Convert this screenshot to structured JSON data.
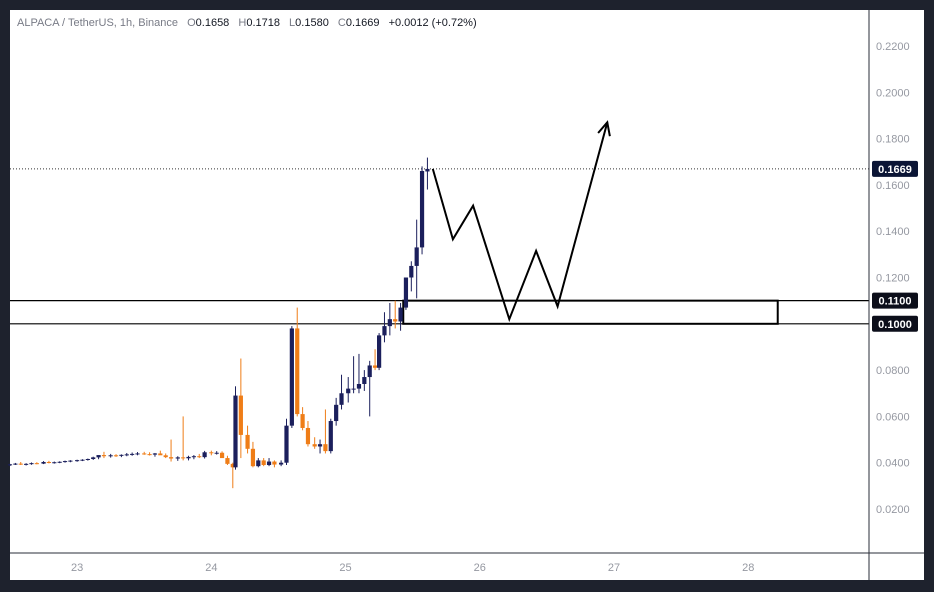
{
  "header": {
    "symbol": "ALPACA / TetherUS, 1h, Binance",
    "open_label": "O",
    "open": "0.1658",
    "high_label": "H",
    "high": "0.1718",
    "low_label": "L",
    "low": "0.1580",
    "close_label": "C",
    "close": "0.1669",
    "change": "+0.0012 (+0.72%)"
  },
  "colors": {
    "bull": "#1b1f5c",
    "bear": "#ef7d17",
    "axis_text": "#9598a1",
    "label_bg": "#0c0e1a"
  },
  "chart_data": {
    "type": "candlestick",
    "ylim": [
      0.0,
      0.23
    ],
    "y_ticks": [
      "0.0200",
      "0.0400",
      "0.0600",
      "0.0800",
      "0.1000",
      "0.1200",
      "0.1400",
      "0.1600",
      "0.1800",
      "0.2000",
      "0.2200"
    ],
    "x_ticks": [
      "23",
      "24",
      "25",
      "26",
      "27",
      "28"
    ],
    "x_tick_positions": [
      23,
      24,
      25,
      26,
      27,
      28
    ],
    "price_labels": [
      "0.1669",
      "0.1100",
      "0.1000"
    ],
    "current_price": 0.1669,
    "zone": {
      "top": 0.11,
      "bottom": 0.1,
      "x_start": 25.43,
      "x_end": 28.22
    },
    "projection": [
      [
        25.65,
        0.1669
      ],
      [
        25.8,
        0.1365
      ],
      [
        25.95,
        0.151
      ],
      [
        26.22,
        0.102
      ],
      [
        26.42,
        0.1315
      ],
      [
        26.58,
        0.1075
      ],
      [
        26.95,
        0.187
      ]
    ],
    "candles": [
      [
        22.5,
        0.0389,
        0.0395,
        0.0386,
        0.0393
      ],
      [
        22.54,
        0.0393,
        0.0399,
        0.039,
        0.0396
      ],
      [
        22.58,
        0.0396,
        0.0403,
        0.039,
        0.0392
      ],
      [
        22.62,
        0.0392,
        0.0398,
        0.0388,
        0.0395
      ],
      [
        22.66,
        0.0395,
        0.0401,
        0.0391,
        0.0398
      ],
      [
        22.7,
        0.0398,
        0.0402,
        0.0393,
        0.0396
      ],
      [
        22.75,
        0.0396,
        0.0407,
        0.0394,
        0.0403
      ],
      [
        22.79,
        0.0403,
        0.0408,
        0.0397,
        0.04
      ],
      [
        22.83,
        0.04,
        0.0405,
        0.0396,
        0.0402
      ],
      [
        22.87,
        0.0402,
        0.0406,
        0.0398,
        0.0404
      ],
      [
        22.91,
        0.0404,
        0.0409,
        0.04,
        0.0407
      ],
      [
        22.95,
        0.0407,
        0.0411,
        0.0402,
        0.0409
      ],
      [
        23.0,
        0.0409,
        0.0413,
        0.0404,
        0.0411
      ],
      [
        23.04,
        0.0411,
        0.0415,
        0.0407,
        0.0413
      ],
      [
        23.08,
        0.0413,
        0.0418,
        0.0409,
        0.0416
      ],
      [
        23.12,
        0.0416,
        0.0426,
        0.0412,
        0.0423
      ],
      [
        23.16,
        0.0423,
        0.043,
        0.0415,
        0.0433
      ],
      [
        23.2,
        0.0433,
        0.0447,
        0.042,
        0.0428
      ],
      [
        23.25,
        0.0428,
        0.0438,
        0.0422,
        0.0432
      ],
      [
        23.29,
        0.0432,
        0.0437,
        0.0425,
        0.043
      ],
      [
        23.33,
        0.043,
        0.0436,
        0.0424,
        0.0434
      ],
      [
        23.37,
        0.0434,
        0.0442,
        0.0428,
        0.0436
      ],
      [
        23.41,
        0.0436,
        0.0444,
        0.043,
        0.0438
      ],
      [
        23.45,
        0.0438,
        0.0446,
        0.0432,
        0.044
      ],
      [
        23.5,
        0.044,
        0.0447,
        0.0434,
        0.0437
      ],
      [
        23.54,
        0.0437,
        0.0445,
        0.0431,
        0.0435
      ],
      [
        23.58,
        0.0435,
        0.0442,
        0.0426,
        0.044
      ],
      [
        23.62,
        0.044,
        0.0452,
        0.0434,
        0.0432
      ],
      [
        23.66,
        0.0432,
        0.044,
        0.042,
        0.0424
      ],
      [
        23.7,
        0.0424,
        0.05,
        0.0405,
        0.0418
      ],
      [
        23.75,
        0.0418,
        0.0428,
        0.0408,
        0.0423
      ],
      [
        23.79,
        0.0423,
        0.06,
        0.041,
        0.0419
      ],
      [
        23.83,
        0.0419,
        0.043,
        0.041,
        0.0425
      ],
      [
        23.87,
        0.0425,
        0.0433,
        0.0415,
        0.0428
      ],
      [
        23.91,
        0.0428,
        0.0438,
        0.042,
        0.0424
      ],
      [
        23.95,
        0.0424,
        0.0451,
        0.0418,
        0.0445
      ],
      [
        24.0,
        0.0445,
        0.0452,
        0.0432,
        0.0441
      ],
      [
        24.04,
        0.0441,
        0.045,
        0.0435,
        0.0443
      ],
      [
        24.08,
        0.0443,
        0.0449,
        0.043,
        0.042
      ],
      [
        24.12,
        0.042,
        0.043,
        0.039,
        0.0395
      ],
      [
        24.16,
        0.0395,
        0.04,
        0.029,
        0.038
      ],
      [
        24.18,
        0.038,
        0.073,
        0.037,
        0.069
      ],
      [
        24.22,
        0.069,
        0.085,
        0.042,
        0.052
      ],
      [
        24.27,
        0.052,
        0.056,
        0.044,
        0.046
      ],
      [
        24.31,
        0.046,
        0.049,
        0.038,
        0.0385
      ],
      [
        24.35,
        0.0385,
        0.042,
        0.038,
        0.041
      ],
      [
        24.39,
        0.041,
        0.042,
        0.0385,
        0.039
      ],
      [
        24.43,
        0.039,
        0.042,
        0.0385,
        0.0405
      ],
      [
        24.47,
        0.0405,
        0.041,
        0.038,
        0.0392
      ],
      [
        24.52,
        0.0392,
        0.041,
        0.0385,
        0.04
      ],
      [
        24.56,
        0.04,
        0.059,
        0.039,
        0.056
      ],
      [
        24.6,
        0.056,
        0.099,
        0.055,
        0.098
      ],
      [
        24.64,
        0.098,
        0.107,
        0.06,
        0.061
      ],
      [
        24.68,
        0.061,
        0.064,
        0.054,
        0.055
      ],
      [
        24.72,
        0.055,
        0.058,
        0.047,
        0.048
      ],
      [
        24.77,
        0.048,
        0.051,
        0.046,
        0.047
      ],
      [
        24.81,
        0.047,
        0.05,
        0.044,
        0.048
      ],
      [
        24.85,
        0.048,
        0.063,
        0.044,
        0.045
      ],
      [
        24.89,
        0.045,
        0.059,
        0.044,
        0.058
      ],
      [
        24.93,
        0.058,
        0.068,
        0.056,
        0.065
      ],
      [
        24.97,
        0.065,
        0.078,
        0.063,
        0.07
      ],
      [
        25.02,
        0.07,
        0.077,
        0.066,
        0.072
      ],
      [
        25.06,
        0.072,
        0.086,
        0.07,
        0.072
      ],
      [
        25.1,
        0.072,
        0.087,
        0.07,
        0.074
      ],
      [
        25.14,
        0.074,
        0.08,
        0.071,
        0.077
      ],
      [
        25.18,
        0.077,
        0.084,
        0.06,
        0.082
      ],
      [
        25.22,
        0.082,
        0.089,
        0.08,
        0.081
      ],
      [
        25.25,
        0.081,
        0.096,
        0.08,
        0.095
      ],
      [
        25.29,
        0.095,
        0.105,
        0.092,
        0.099
      ],
      [
        25.33,
        0.099,
        0.109,
        0.095,
        0.102
      ],
      [
        25.37,
        0.102,
        0.11,
        0.098,
        0.101
      ],
      [
        25.41,
        0.101,
        0.109,
        0.097,
        0.107
      ],
      [
        25.45,
        0.107,
        0.118,
        0.106,
        0.12
      ],
      [
        25.49,
        0.12,
        0.127,
        0.114,
        0.125
      ],
      [
        25.53,
        0.125,
        0.145,
        0.111,
        0.133
      ],
      [
        25.57,
        0.133,
        0.168,
        0.13,
        0.166
      ],
      [
        25.61,
        0.1658,
        0.1718,
        0.158,
        0.1669
      ]
    ]
  }
}
